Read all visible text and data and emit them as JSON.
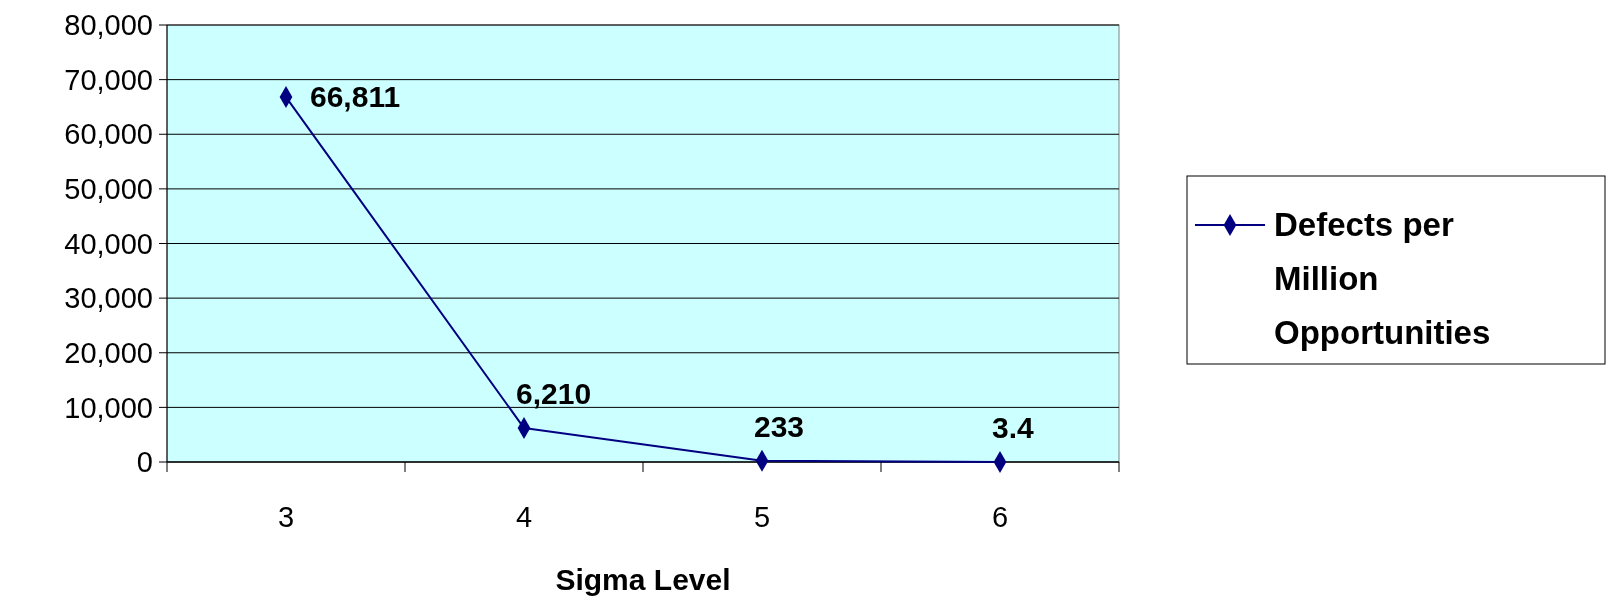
{
  "chart_data": {
    "type": "line",
    "xlabel": "Sigma Level",
    "categories": [
      "3",
      "4",
      "5",
      "6"
    ],
    "series": [
      {
        "name": "Defects per Million Opportunities",
        "color": "#000080",
        "values": [
          66811,
          6210,
          233,
          3.4
        ],
        "value_labels": [
          "66,811",
          "6,210",
          "233",
          "3.4"
        ]
      }
    ],
    "ylim": [
      0,
      80000
    ],
    "yticks": [
      0,
      {
        "value": 10000,
        "label": "10,000"
      },
      {
        "value": 20000,
        "label": "20,000"
      },
      {
        "value": 30000,
        "label": "30,000"
      },
      {
        "value": 40000,
        "label": "40,000"
      },
      {
        "value": 50000,
        "label": "50,000"
      },
      {
        "value": 60000,
        "label": "60,000"
      },
      {
        "value": 70000,
        "label": "70,000"
      },
      {
        "value": 80000,
        "label": "80,000"
      }
    ],
    "grid": "y",
    "legend": "right",
    "marker": "diamond",
    "line_style": "solid"
  }
}
